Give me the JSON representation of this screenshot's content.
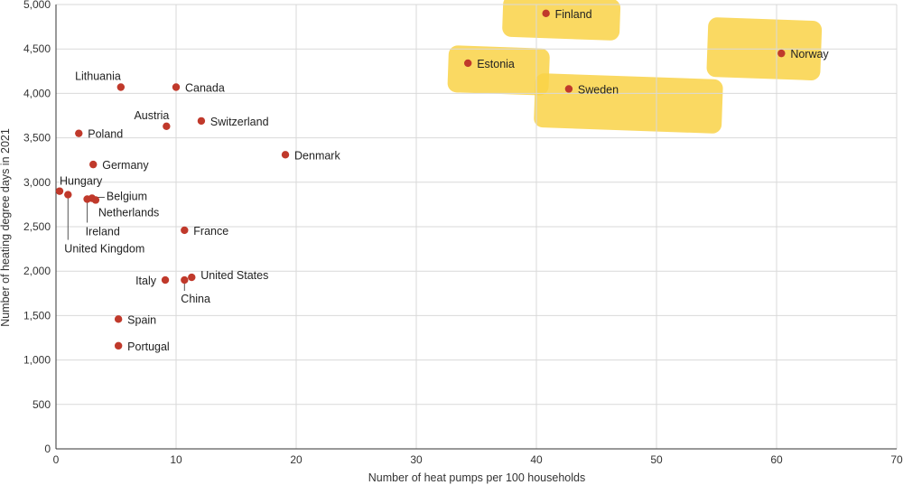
{
  "chart_data": {
    "type": "scatter",
    "xlabel": "Number of heat pumps per 100 households",
    "ylabel": "Number of heating degree days in 2021",
    "xlim": [
      0,
      70
    ],
    "ylim": [
      0,
      5000
    ],
    "x_ticks": [
      0,
      10,
      20,
      30,
      40,
      50,
      60,
      70
    ],
    "y_ticks": [
      0,
      500,
      1000,
      1500,
      2000,
      2500,
      3000,
      3500,
      4000,
      4500,
      5000
    ],
    "x_tick_labels": [
      "0",
      "10",
      "20",
      "30",
      "40",
      "50",
      "60",
      "70"
    ],
    "y_tick_labels": [
      "0",
      "500",
      "1,000",
      "1,500",
      "2,000",
      "2,500",
      "3,000",
      "3,500",
      "4,000",
      "4,500",
      "5,000"
    ],
    "grid": true,
    "point_color": "#c0392b",
    "highlight_color": "#f9d247",
    "points": [
      {
        "label": "Finland",
        "x": 40.8,
        "y": 4900,
        "highlighted": true
      },
      {
        "label": "Norway",
        "x": 60.4,
        "y": 4450,
        "highlighted": true
      },
      {
        "label": "Estonia",
        "x": 34.3,
        "y": 4340,
        "highlighted": true
      },
      {
        "label": "Sweden",
        "x": 42.7,
        "y": 4050,
        "highlighted": true
      },
      {
        "label": "Lithuania",
        "x": 5.4,
        "y": 4070,
        "highlighted": false
      },
      {
        "label": "Canada",
        "x": 10.0,
        "y": 4070,
        "highlighted": false
      },
      {
        "label": "Austria",
        "x": 9.2,
        "y": 3630,
        "highlighted": false
      },
      {
        "label": "Switzerland",
        "x": 12.1,
        "y": 3690,
        "highlighted": false
      },
      {
        "label": "Poland",
        "x": 1.9,
        "y": 3550,
        "highlighted": false
      },
      {
        "label": "Denmark",
        "x": 19.1,
        "y": 3310,
        "highlighted": false
      },
      {
        "label": "Germany",
        "x": 3.1,
        "y": 3200,
        "highlighted": false
      },
      {
        "label": "Hungary",
        "x": 0.3,
        "y": 2900,
        "highlighted": false
      },
      {
        "label": "United Kingdom",
        "x": 1.0,
        "y": 2860,
        "highlighted": false
      },
      {
        "label": "Ireland",
        "x": 2.6,
        "y": 2810,
        "highlighted": false
      },
      {
        "label": "Belgium",
        "x": 3.0,
        "y": 2820,
        "highlighted": false
      },
      {
        "label": "Netherlands",
        "x": 3.3,
        "y": 2800,
        "highlighted": false
      },
      {
        "label": "France",
        "x": 10.7,
        "y": 2460,
        "highlighted": false
      },
      {
        "label": "United States",
        "x": 11.3,
        "y": 1930,
        "highlighted": false
      },
      {
        "label": "Italy",
        "x": 9.1,
        "y": 1900,
        "highlighted": false
      },
      {
        "label": "China",
        "x": 10.7,
        "y": 1900,
        "highlighted": false
      },
      {
        "label": "Spain",
        "x": 5.2,
        "y": 1460,
        "highlighted": false
      },
      {
        "label": "Portugal",
        "x": 5.2,
        "y": 1160,
        "highlighted": false
      }
    ]
  }
}
